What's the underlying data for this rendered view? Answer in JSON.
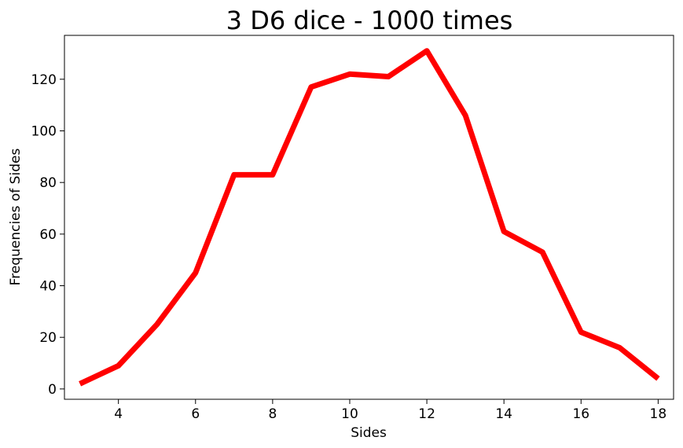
{
  "chart_data": {
    "type": "line",
    "title": "3 D6 dice - 1000 times",
    "xlabel": "Sides",
    "ylabel": "Frequencies of Sides",
    "xlim": [
      2.6,
      18.4
    ],
    "ylim": [
      -4,
      137
    ],
    "xticks": [
      4,
      6,
      8,
      10,
      12,
      14,
      16,
      18
    ],
    "yticks": [
      0,
      20,
      40,
      60,
      80,
      100,
      120
    ],
    "grid": false,
    "series": [
      {
        "color": "#ff0000",
        "x": [
          3,
          4,
          5,
          6,
          7,
          8,
          9,
          10,
          11,
          12,
          13,
          14,
          15,
          16,
          17,
          18
        ],
        "y": [
          2,
          9,
          25,
          45,
          83,
          83,
          117,
          122,
          121,
          131,
          106,
          61,
          53,
          22,
          16,
          4
        ]
      }
    ]
  }
}
